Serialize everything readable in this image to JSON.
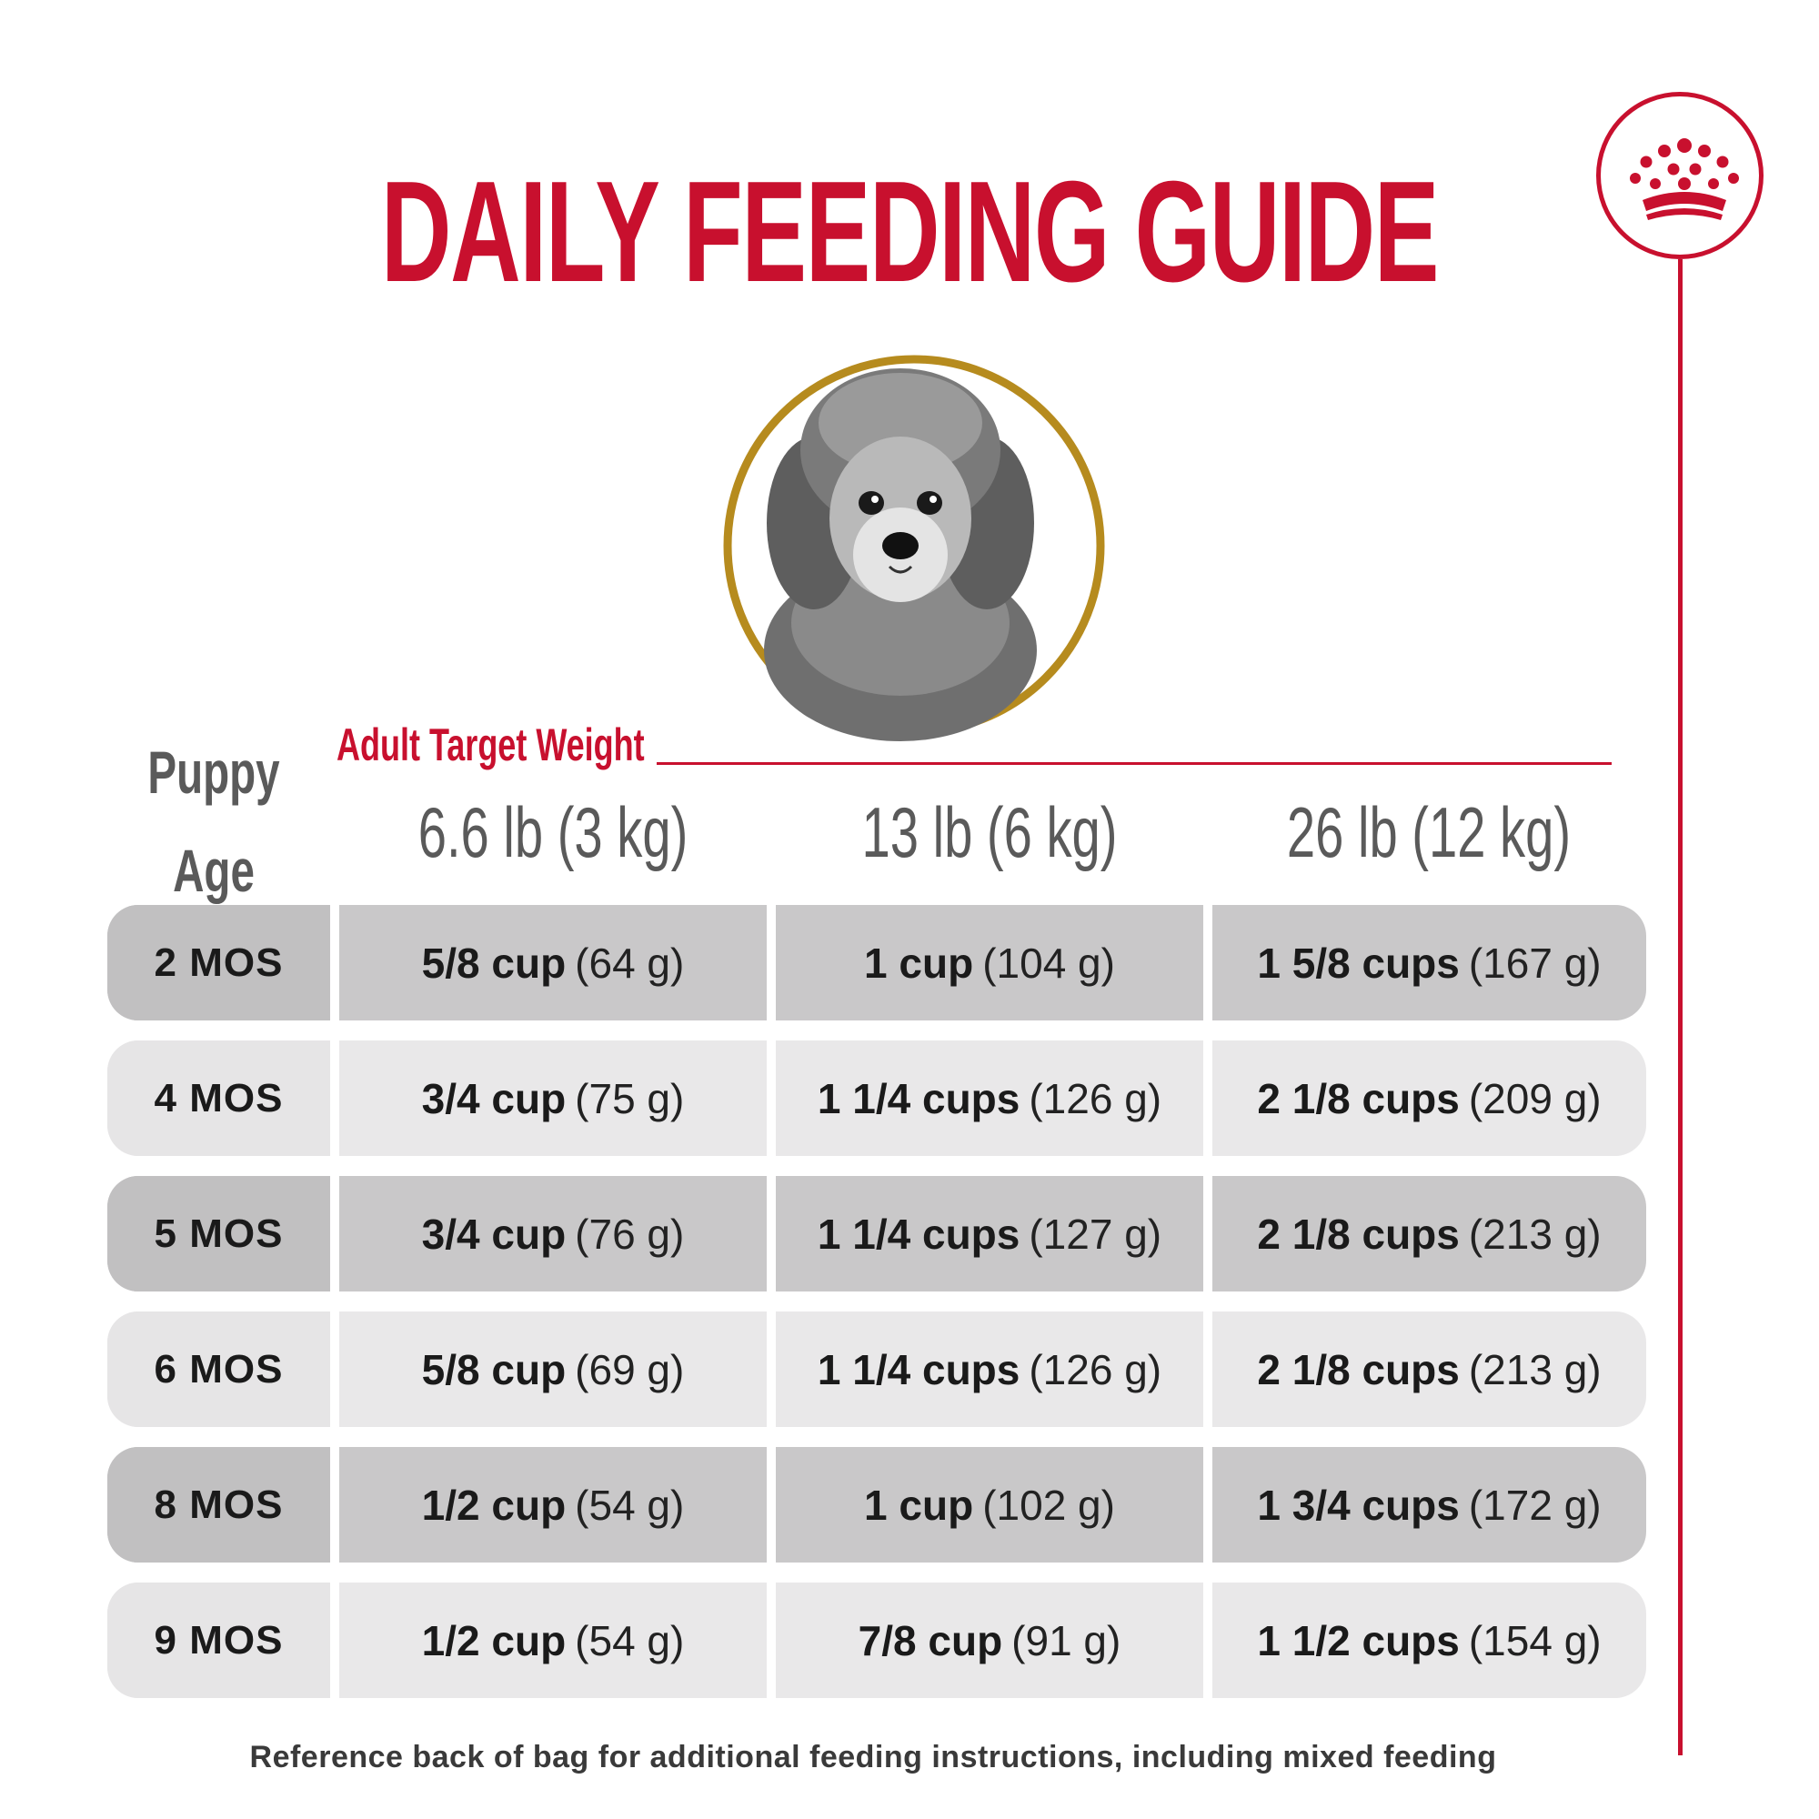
{
  "title": "DAILY FEEDING GUIDE",
  "colors": {
    "brand_red": "#c8102e",
    "gold_ring": "#b68b1e",
    "row_dark": "#c9c8c9",
    "row_light": "#e9e8e9"
  },
  "icons": {
    "brand": "crown-icon",
    "portrait": "poodle-puppy-portrait"
  },
  "table": {
    "age_header_line1": "Puppy",
    "age_header_line2": "Age",
    "adult_label": "Adult Target Weight",
    "weights": [
      "6.6 lb (3 kg)",
      "13 lb (6 kg)",
      "26 lb (12 kg)"
    ],
    "rows": [
      {
        "age": "2 MOS",
        "shade": "dark",
        "cells": [
          {
            "amount": "5/8 cup",
            "grams": "(64 g)"
          },
          {
            "amount": "1 cup",
            "grams": "(104 g)"
          },
          {
            "amount": "1 5/8 cups",
            "grams": "(167 g)"
          }
        ]
      },
      {
        "age": "4 MOS",
        "shade": "light",
        "cells": [
          {
            "amount": "3/4 cup",
            "grams": "(75 g)"
          },
          {
            "amount": "1 1/4 cups",
            "grams": "(126 g)"
          },
          {
            "amount": "2 1/8 cups",
            "grams": "(209 g)"
          }
        ]
      },
      {
        "age": "5 MOS",
        "shade": "dark",
        "cells": [
          {
            "amount": "3/4 cup",
            "grams": "(76 g)"
          },
          {
            "amount": "1 1/4 cups",
            "grams": "(127 g)"
          },
          {
            "amount": "2 1/8 cups",
            "grams": "(213 g)"
          }
        ]
      },
      {
        "age": "6 MOS",
        "shade": "light",
        "cells": [
          {
            "amount": "5/8 cup",
            "grams": "(69 g)"
          },
          {
            "amount": "1 1/4 cups",
            "grams": "(126 g)"
          },
          {
            "amount": "2 1/8 cups",
            "grams": "(213 g)"
          }
        ]
      },
      {
        "age": "8 MOS",
        "shade": "dark",
        "cells": [
          {
            "amount": "1/2 cup",
            "grams": "(54 g)"
          },
          {
            "amount": "1 cup",
            "grams": "(102 g)"
          },
          {
            "amount": "1 3/4 cups",
            "grams": "(172 g)"
          }
        ]
      },
      {
        "age": "9 MOS",
        "shade": "light",
        "cells": [
          {
            "amount": "1/2 cup",
            "grams": "(54 g)"
          },
          {
            "amount": "7/8 cup",
            "grams": "(91 g)"
          },
          {
            "amount": "1 1/2 cups",
            "grams": "(154 g)"
          }
        ]
      }
    ]
  },
  "footnote": "Reference back of bag for additional feeding instructions, including mixed feeding"
}
